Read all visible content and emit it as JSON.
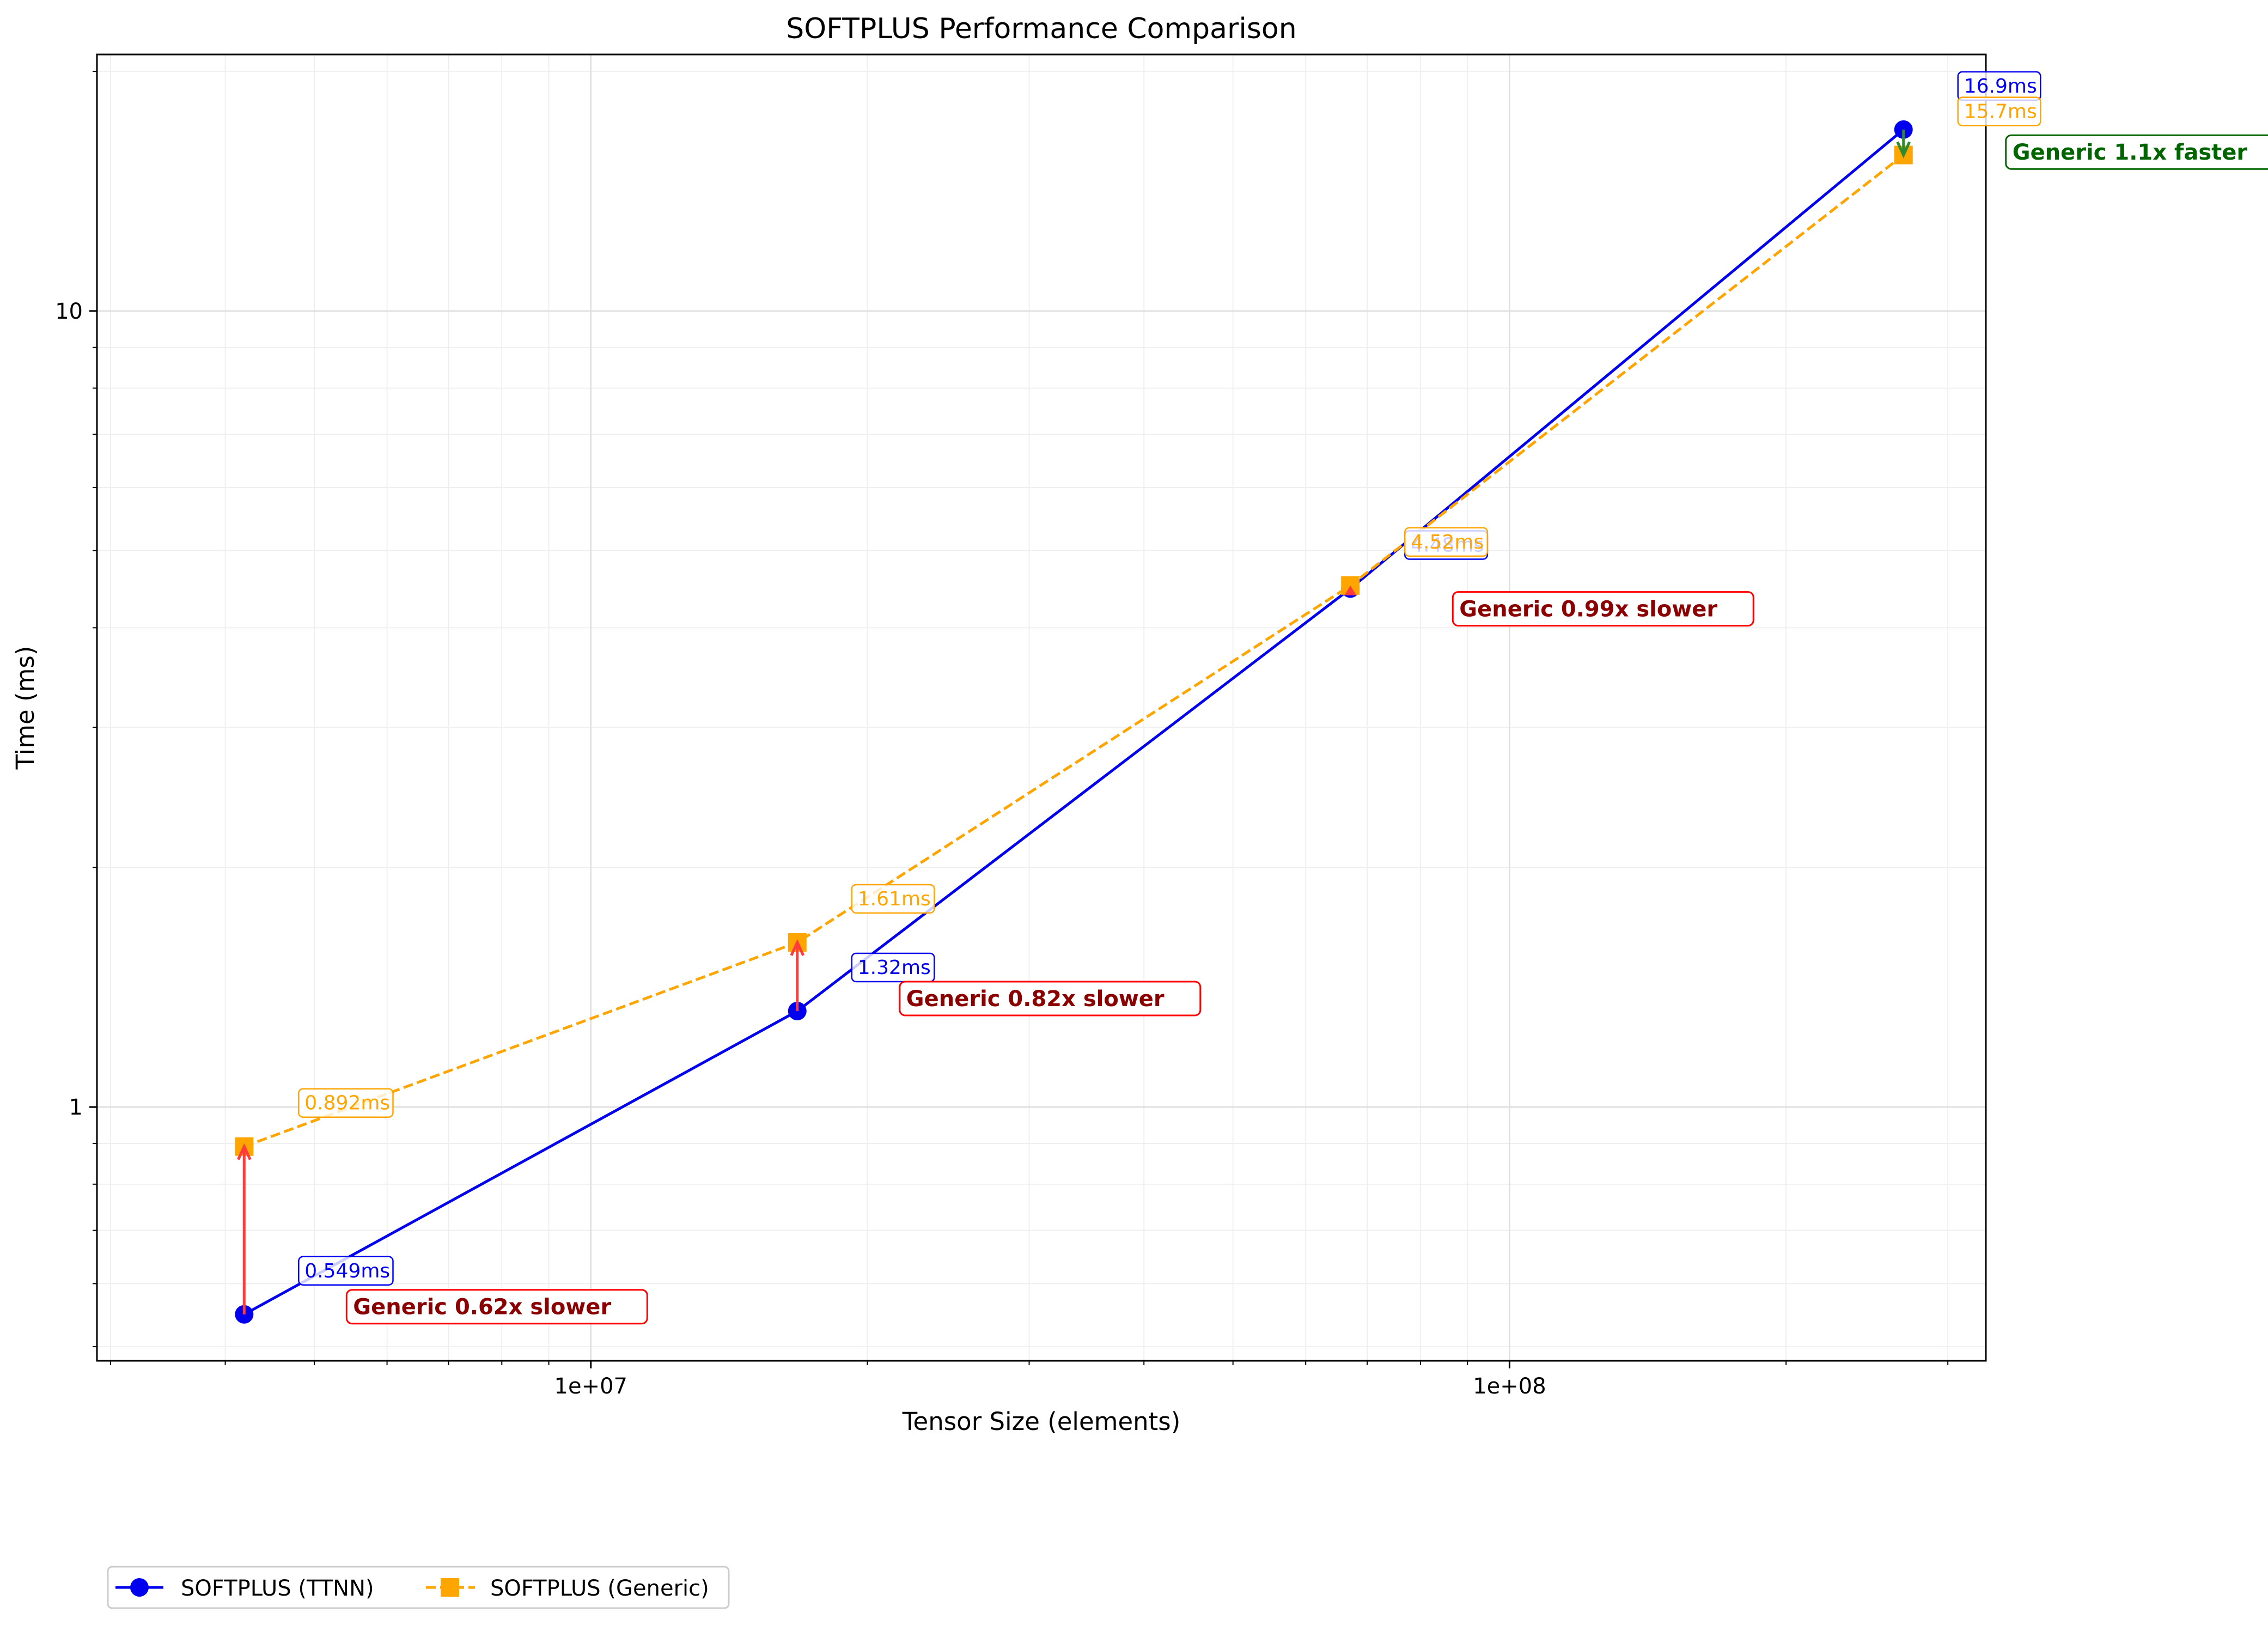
{
  "chart_data": {
    "type": "line",
    "title": "SOFTPLUS Performance Comparison",
    "xlabel": "Tensor Size (elements)",
    "ylabel": "Time (ms)",
    "xscale": "log",
    "yscale": "log",
    "xlim": [
      2900000,
      330000000
    ],
    "ylim": [
      0.48,
      21
    ],
    "x_ticks": [
      {
        "value": 10000000,
        "label": "1e+07"
      },
      {
        "value": 100000000,
        "label": "1e+08"
      }
    ],
    "y_ticks": [
      {
        "value": 1,
        "label": "1"
      },
      {
        "value": 10,
        "label": "10"
      }
    ],
    "grid": true,
    "legend_position": "below-left",
    "x": [
      4194304,
      16777216,
      67108864,
      268435456
    ],
    "series": [
      {
        "name": "SOFTPLUS (TTNN)",
        "color": "#0000ee",
        "marker": "circle",
        "linestyle": "solid",
        "values": [
          0.549,
          1.32,
          4.48,
          16.9
        ],
        "labels": [
          "0.549ms",
          "1.32ms",
          "4.48ms",
          "16.9ms"
        ]
      },
      {
        "name": "SOFTPLUS (Generic)",
        "color": "#ffa500",
        "marker": "square",
        "linestyle": "dashed",
        "values": [
          0.892,
          1.61,
          4.52,
          15.7
        ],
        "labels": [
          "0.892ms",
          "1.61ms",
          "4.52ms",
          "15.7ms"
        ]
      }
    ],
    "annotations": [
      {
        "text": "Generic 0.62x slower",
        "kind": "slower",
        "color": "#8b0000",
        "border": "#ff0000",
        "arrow": "#ff3c3c"
      },
      {
        "text": "Generic 0.82x slower",
        "kind": "slower",
        "color": "#8b0000",
        "border": "#ff0000",
        "arrow": "#ff3c3c"
      },
      {
        "text": "Generic 0.99x slower",
        "kind": "slower",
        "color": "#8b0000",
        "border": "#ff0000",
        "arrow": "#ff3c3c"
      },
      {
        "text": "Generic 1.1x faster",
        "kind": "faster",
        "color": "#006400",
        "border": "#006400",
        "arrow": "#2e8b2e"
      }
    ]
  }
}
